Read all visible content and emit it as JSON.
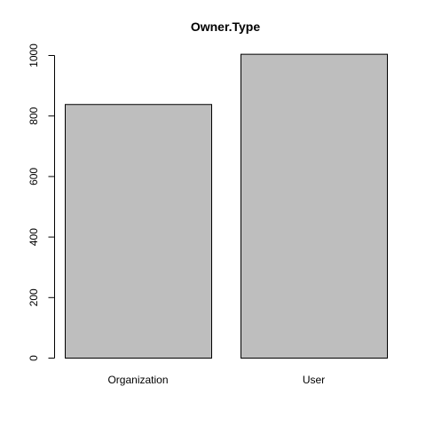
{
  "chart_data": {
    "type": "bar",
    "title": "Owner.Type",
    "xlabel": "",
    "ylabel": "",
    "categories": [
      "Organization",
      "User"
    ],
    "values": [
      838,
      1004
    ],
    "ylim": [
      0,
      1000
    ],
    "yticks": [
      0,
      200,
      400,
      600,
      800,
      1000
    ],
    "ytick_labels": [
      "0",
      "200",
      "400",
      "600",
      "800",
      "1000"
    ],
    "grid": false,
    "legend": "none",
    "bar_fill": "#bebebe",
    "bar_stroke": "#000000"
  }
}
